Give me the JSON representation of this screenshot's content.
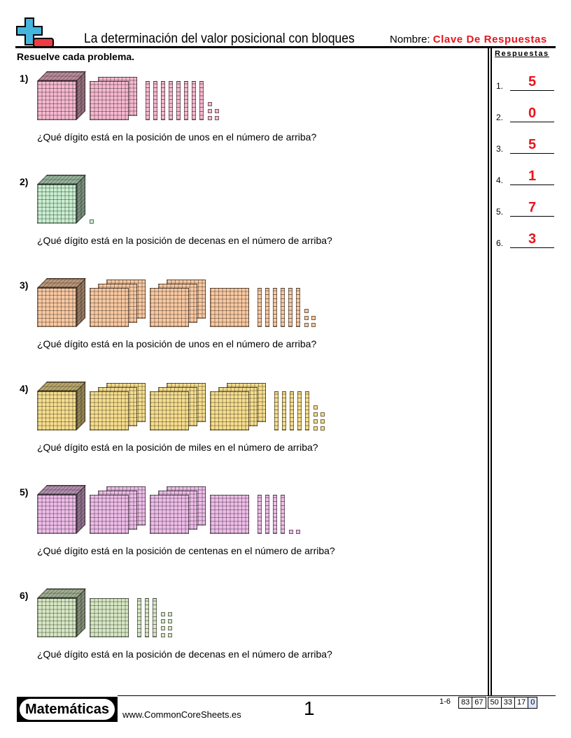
{
  "header": {
    "title": "La determinación del valor posicional con bloques",
    "name_label": "Nombre:",
    "name_value": "Clave De Respuestas"
  },
  "instructions": "Resuelve cada problema.",
  "answers_header": "Respuestas",
  "problems": [
    {
      "label": "1)",
      "question": "¿Qué dígito está en la posición de unos en el número de arriba?",
      "blocks": {
        "thousands": 1,
        "hundreds": 2,
        "tens": 8,
        "ones": 5
      },
      "color": "#f6b9cf"
    },
    {
      "label": "2)",
      "question": "¿Qué dígito está en la posición de decenas en el número de arriba?",
      "blocks": {
        "thousands": 1,
        "hundreds": 0,
        "tens": 0,
        "ones": 1
      },
      "color": "#c9efd0"
    },
    {
      "label": "3)",
      "question": "¿Qué dígito está en la posición de unos en el número de arriba?",
      "blocks": {
        "thousands": 1,
        "hundreds": 7,
        "tens": 6,
        "ones": 5
      },
      "color": "#f9c9a2"
    },
    {
      "label": "4)",
      "question": "¿Qué dígito está en la posición de miles en el número de arriba?",
      "blocks": {
        "thousands": 1,
        "hundreds": 9,
        "tens": 5,
        "ones": 7
      },
      "color": "#f7de8e"
    },
    {
      "label": "5)",
      "question": "¿Qué dígito está en la posición de centenas en el número de arriba?",
      "blocks": {
        "thousands": 1,
        "hundreds": 7,
        "tens": 4,
        "ones": 2
      },
      "color": "#eebde8"
    },
    {
      "label": "6)",
      "question": "¿Qué dígito está en la posición de decenas en el número de arriba?",
      "blocks": {
        "thousands": 1,
        "hundreds": 1,
        "tens": 3,
        "ones": 8
      },
      "color": "#d7e9c4"
    }
  ],
  "answers": [
    {
      "num": "1.",
      "value": "5"
    },
    {
      "num": "2.",
      "value": "0"
    },
    {
      "num": "3.",
      "value": "5"
    },
    {
      "num": "4.",
      "value": "1"
    },
    {
      "num": "5.",
      "value": "7"
    },
    {
      "num": "6.",
      "value": "3"
    }
  ],
  "footer": {
    "brand": "Matemáticas",
    "site": "www.CommonCoreSheets.es",
    "page": "1",
    "range": "1-6",
    "scores": [
      "83",
      "67",
      "50",
      "33",
      "17",
      "0"
    ]
  },
  "colors": {
    "accent": "#e8141c",
    "logo_blue": "#45b5de",
    "logo_red": "#ef3b42"
  }
}
